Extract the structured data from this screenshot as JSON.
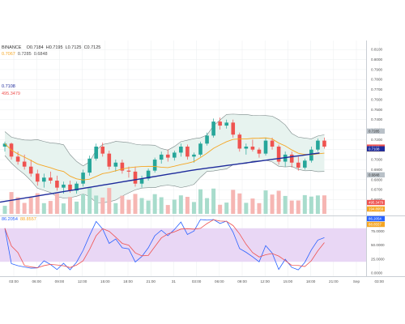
{
  "header": {
    "exchange": "BINANCE",
    "ohlc": {
      "open": "O0.7184",
      "high": "H0.7195",
      "low": "L0.7125",
      "close": "C0.7125"
    },
    "sub_values": [
      "0.7067",
      "0.7285",
      "0.6848"
    ],
    "left_pane_price": "0.7108",
    "left_pane_indicator": "495.3479"
  },
  "stoch_legend": {
    "k": "86.2054",
    "d": "88.8557"
  },
  "price_axis": {
    "ticks": [
      "0.8100",
      "0.8000",
      "0.7900",
      "0.7800",
      "0.7700",
      "0.7600",
      "0.7500",
      "0.7400",
      "0.7300",
      "0.7200",
      "0.7100",
      "0.7000",
      "0.6900",
      "0.6800",
      "0.6700",
      "0.6600",
      "0.6500"
    ],
    "badges": [
      {
        "text": "0.7285",
        "value": 0.7285,
        "color": "#b9c1c8",
        "tcolor": "#333333"
      },
      {
        "text": "0.7125",
        "value": 0.7125,
        "color": "#ef5350",
        "tcolor": "#ffffff"
      },
      {
        "text": "0.7106",
        "value": 0.7106,
        "color": "#f5a623",
        "tcolor": "#ffffff"
      },
      {
        "text": "0.7108",
        "value": 0.7108,
        "color": "#1e2b9c",
        "tcolor": "#ffffff"
      },
      {
        "text": "0.6848",
        "value": 0.6848,
        "color": "#b9c1c8",
        "tcolor": "#333333"
      }
    ],
    "volume_badges": [
      {
        "text": "495.3479",
        "color": "#ef5350"
      },
      {
        "text": "194.8959",
        "color": "#f5a623"
      }
    ]
  },
  "stoch_axis": {
    "ticks": [
      "75.0000",
      "50.0000",
      "25.0000",
      "0.0000"
    ],
    "badges": [
      {
        "text": "86.2054",
        "color": "#2962ff"
      },
      {
        "text": "88.8557",
        "color": "#f5a623"
      }
    ]
  },
  "time_axis": {
    "labels": [
      "03:00",
      "06:00",
      "09:00",
      "12:00",
      "15:00",
      "18:00",
      "21:00",
      "31",
      "03:00",
      "06:00",
      "09:00",
      "12:00",
      "15:00",
      "18:00",
      "21:00",
      "Sep",
      "03:00"
    ]
  },
  "colors": {
    "up": "#26a69a",
    "down": "#ef5350",
    "ma_fast": "#f5a623",
    "ma_slow": "#1e2b9c",
    "bb_fill": "#e7f3ef",
    "bb_line": "#7d8a8a",
    "stoch_fill": "#e9d7f5",
    "stoch_k": "#2962ff",
    "stoch_d": "#ef5350"
  },
  "chart_data": {
    "type": "candlestick",
    "y_range": [
      0.645,
      0.815
    ],
    "candles": [
      {
        "o": 0.713,
        "h": 0.718,
        "l": 0.708,
        "c": 0.716
      },
      {
        "o": 0.716,
        "h": 0.717,
        "l": 0.7,
        "c": 0.703
      },
      {
        "o": 0.703,
        "h": 0.708,
        "l": 0.695,
        "c": 0.698
      },
      {
        "o": 0.698,
        "h": 0.705,
        "l": 0.69,
        "c": 0.693
      },
      {
        "o": 0.693,
        "h": 0.7,
        "l": 0.683,
        "c": 0.686
      },
      {
        "o": 0.686,
        "h": 0.69,
        "l": 0.674,
        "c": 0.678
      },
      {
        "o": 0.678,
        "h": 0.686,
        "l": 0.672,
        "c": 0.682
      },
      {
        "o": 0.682,
        "h": 0.688,
        "l": 0.676,
        "c": 0.679
      },
      {
        "o": 0.679,
        "h": 0.684,
        "l": 0.669,
        "c": 0.672
      },
      {
        "o": 0.672,
        "h": 0.678,
        "l": 0.666,
        "c": 0.675
      },
      {
        "o": 0.675,
        "h": 0.679,
        "l": 0.667,
        "c": 0.669
      },
      {
        "o": 0.669,
        "h": 0.678,
        "l": 0.666,
        "c": 0.676
      },
      {
        "o": 0.676,
        "h": 0.69,
        "l": 0.673,
        "c": 0.687
      },
      {
        "o": 0.687,
        "h": 0.704,
        "l": 0.684,
        "c": 0.701
      },
      {
        "o": 0.701,
        "h": 0.716,
        "l": 0.699,
        "c": 0.713
      },
      {
        "o": 0.713,
        "h": 0.717,
        "l": 0.703,
        "c": 0.706
      },
      {
        "o": 0.706,
        "h": 0.709,
        "l": 0.69,
        "c": 0.693
      },
      {
        "o": 0.693,
        "h": 0.7,
        "l": 0.688,
        "c": 0.697
      },
      {
        "o": 0.697,
        "h": 0.7,
        "l": 0.686,
        "c": 0.689
      },
      {
        "o": 0.689,
        "h": 0.693,
        "l": 0.682,
        "c": 0.688
      },
      {
        "o": 0.688,
        "h": 0.693,
        "l": 0.673,
        "c": 0.676
      },
      {
        "o": 0.676,
        "h": 0.684,
        "l": 0.672,
        "c": 0.681
      },
      {
        "o": 0.681,
        "h": 0.691,
        "l": 0.679,
        "c": 0.689
      },
      {
        "o": 0.689,
        "h": 0.702,
        "l": 0.687,
        "c": 0.7
      },
      {
        "o": 0.7,
        "h": 0.708,
        "l": 0.696,
        "c": 0.705
      },
      {
        "o": 0.705,
        "h": 0.71,
        "l": 0.698,
        "c": 0.702
      },
      {
        "o": 0.702,
        "h": 0.709,
        "l": 0.699,
        "c": 0.707
      },
      {
        "o": 0.707,
        "h": 0.716,
        "l": 0.703,
        "c": 0.713
      },
      {
        "o": 0.713,
        "h": 0.715,
        "l": 0.7,
        "c": 0.703
      },
      {
        "o": 0.703,
        "h": 0.707,
        "l": 0.697,
        "c": 0.705
      },
      {
        "o": 0.705,
        "h": 0.718,
        "l": 0.703,
        "c": 0.716
      },
      {
        "o": 0.716,
        "h": 0.727,
        "l": 0.714,
        "c": 0.724
      },
      {
        "o": 0.724,
        "h": 0.741,
        "l": 0.722,
        "c": 0.738
      },
      {
        "o": 0.738,
        "h": 0.742,
        "l": 0.73,
        "c": 0.734
      },
      {
        "o": 0.734,
        "h": 0.74,
        "l": 0.731,
        "c": 0.737
      },
      {
        "o": 0.737,
        "h": 0.74,
        "l": 0.722,
        "c": 0.725
      },
      {
        "o": 0.725,
        "h": 0.727,
        "l": 0.708,
        "c": 0.711
      },
      {
        "o": 0.711,
        "h": 0.716,
        "l": 0.705,
        "c": 0.713
      },
      {
        "o": 0.713,
        "h": 0.72,
        "l": 0.708,
        "c": 0.71
      },
      {
        "o": 0.71,
        "h": 0.712,
        "l": 0.702,
        "c": 0.706
      },
      {
        "o": 0.706,
        "h": 0.722,
        "l": 0.704,
        "c": 0.719
      },
      {
        "o": 0.719,
        "h": 0.722,
        "l": 0.71,
        "c": 0.713
      },
      {
        "o": 0.713,
        "h": 0.715,
        "l": 0.695,
        "c": 0.698
      },
      {
        "o": 0.698,
        "h": 0.708,
        "l": 0.693,
        "c": 0.705
      },
      {
        "o": 0.705,
        "h": 0.708,
        "l": 0.692,
        "c": 0.697
      },
      {
        "o": 0.697,
        "h": 0.703,
        "l": 0.689,
        "c": 0.692
      },
      {
        "o": 0.692,
        "h": 0.701,
        "l": 0.69,
        "c": 0.699
      },
      {
        "o": 0.699,
        "h": 0.713,
        "l": 0.697,
        "c": 0.71
      },
      {
        "o": 0.71,
        "h": 0.721,
        "l": 0.708,
        "c": 0.719
      },
      {
        "o": 0.719,
        "h": 0.722,
        "l": 0.711,
        "c": 0.713
      }
    ]
  }
}
